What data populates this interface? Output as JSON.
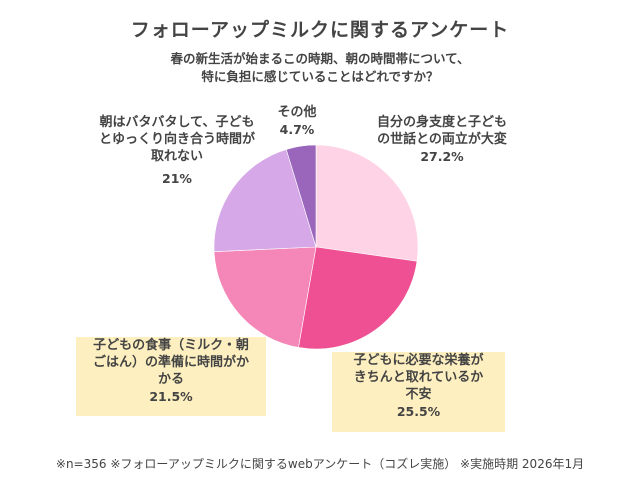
{
  "chart": {
    "title": "フォローアップミルクに関するアンケート",
    "subtitle_line1": "春の新生活が始まるこの時期、朝の時間帯について、",
    "subtitle_line2": "特に負担に感じていることはどれですか？",
    "footnote": "※n=356 ※フォローアップミルクに関するwebアンケート（コズレ実施） ※実施時期 2026年1月"
  },
  "labels": [
    {
      "line1": "自分の身支度と子ども",
      "line2": "の世話との両立が大変",
      "line3": "",
      "pct": "27.2%"
    },
    {
      "line1": "子どもに必要な栄養が",
      "line2": "きちんと取れているか",
      "line3": "不安",
      "pct": "25.5%"
    },
    {
      "line1": "子どもの食事（ミルク・朝",
      "line2": "ごはん）の準備に時間がか",
      "line3": "かる",
      "pct": "21.5%"
    },
    {
      "line1": "朝はバタバタして、子ども",
      "line2": "とゆっくり向き合う時間が",
      "line3": "取れない",
      "pct": "21%"
    },
    {
      "line1": "その他",
      "line2": "",
      "line3": "",
      "pct": "4.7%"
    }
  ],
  "chart_data": {
    "type": "pie",
    "title": "フォローアップミルクに関するアンケート",
    "subtitle": "春の新生活が始まるこの時期、朝の時間帯について、特に負担に感じていることはどれですか？",
    "categories": [
      "自分の身支度と子どもの世話との両立が大変",
      "子どもに必要な栄養がきちんと取れているか不安",
      "子どもの食事（ミルク・朝ごはん）の準備に時間がかかる",
      "朝はバタバタして、子どもとゆっくり向き合う時間が取れない",
      "その他"
    ],
    "values": [
      27.2,
      25.5,
      21.5,
      21.0,
      4.7
    ],
    "colors": [
      "#ffd3e6",
      "#ef5094",
      "#f587b8",
      "#d6a8e8",
      "#9966bb"
    ],
    "start_angle": "12 o'clock",
    "direction": "clockwise",
    "unit": "%",
    "n": 356,
    "note": "※n=356 ※フォローアップミルクに関するwebアンケート（コズレ実施） ※実施時期 2026年1月"
  }
}
